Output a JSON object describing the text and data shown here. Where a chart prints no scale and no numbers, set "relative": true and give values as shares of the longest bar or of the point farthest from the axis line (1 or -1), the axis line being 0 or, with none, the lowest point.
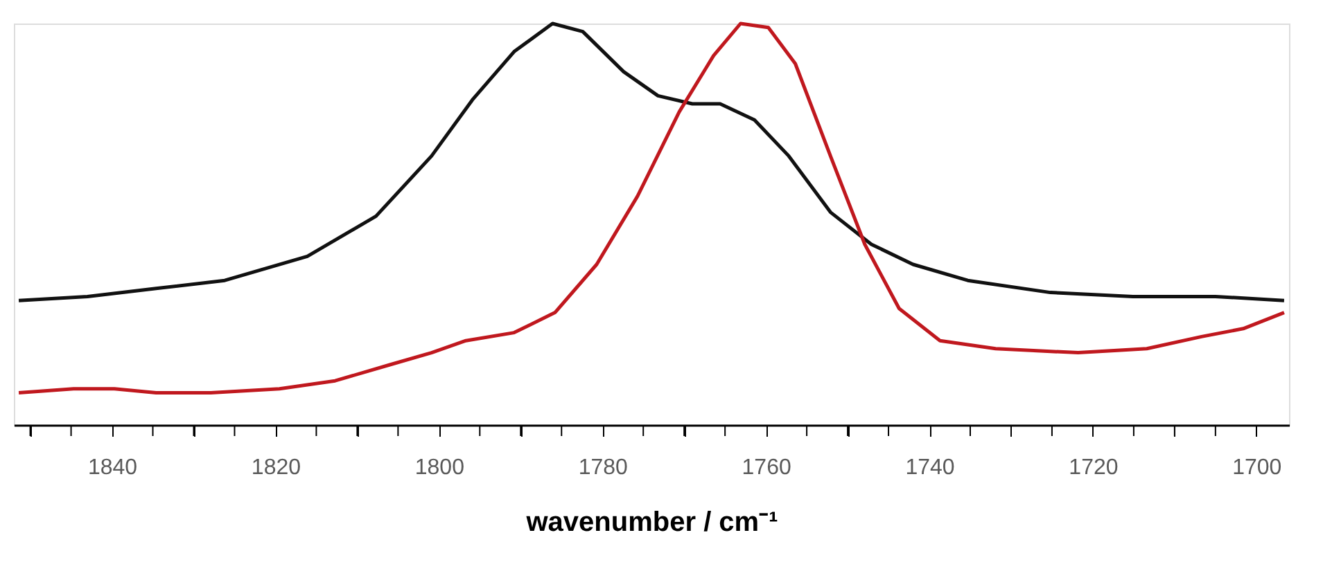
{
  "chart_data": {
    "type": "line",
    "relative": true,
    "xlabel": "wavenumber / cm⁻¹",
    "xlim": [
      1852,
      1696
    ],
    "xticks": [
      {
        "value": 1850,
        "label": null
      },
      {
        "value": 1845,
        "label": null
      },
      1840,
      {
        "value": 1835,
        "label": null
      },
      {
        "value": 1830,
        "label": null
      },
      {
        "value": 1825,
        "label": null
      },
      1820,
      {
        "value": 1815,
        "label": null
      },
      {
        "value": 1810,
        "label": null
      },
      {
        "value": 1805,
        "label": null
      },
      1800,
      {
        "value": 1795,
        "label": null
      },
      {
        "value": 1790,
        "label": null
      },
      {
        "value": 1785,
        "label": null
      },
      1780,
      {
        "value": 1775,
        "label": null
      },
      {
        "value": 1770,
        "label": null
      },
      {
        "value": 1765,
        "label": null
      },
      1760,
      {
        "value": 1755,
        "label": null
      },
      {
        "value": 1750,
        "label": null
      },
      {
        "value": 1745,
        "label": null
      },
      1740,
      {
        "value": 1735,
        "label": null
      },
      {
        "value": 1730,
        "label": null
      },
      {
        "value": 1725,
        "label": null
      },
      1720,
      {
        "value": 1715,
        "label": null
      },
      {
        "value": 1710,
        "label": null
      },
      {
        "value": 1705,
        "label": null
      },
      1700
    ],
    "grid": false,
    "marker": "none",
    "line_style": "solid",
    "series": [
      {
        "color": "#111111",
        "x": [
          1851.4,
          1843.0,
          1834.6,
          1826.2,
          1816.1,
          1807.7,
          1800.9,
          1795.9,
          1790.8,
          1786.1,
          1782.4,
          1777.4,
          1773.2,
          1769.0,
          1765.6,
          1761.4,
          1757.2,
          1752.1,
          1747.1,
          1742.0,
          1735.3,
          1725.2,
          1715.1,
          1705.0,
          1696.6
        ],
        "values": [
          0.31,
          0.32,
          0.34,
          0.36,
          0.42,
          0.52,
          0.67,
          0.81,
          0.93,
          1.0,
          0.98,
          0.88,
          0.82,
          0.8,
          0.8,
          0.76,
          0.67,
          0.53,
          0.45,
          0.4,
          0.36,
          0.33,
          0.32,
          0.32,
          0.31
        ]
      },
      {
        "color": "#c0181e",
        "x": [
          1851.4,
          1844.7,
          1839.7,
          1834.6,
          1827.9,
          1819.5,
          1812.7,
          1806.0,
          1800.9,
          1796.7,
          1790.8,
          1785.8,
          1780.7,
          1775.7,
          1770.6,
          1766.4,
          1763.1,
          1759.7,
          1756.4,
          1752.1,
          1747.9,
          1743.7,
          1738.7,
          1731.9,
          1721.8,
          1713.4,
          1706.7,
          1701.6,
          1696.6
        ],
        "values": [
          0.08,
          0.09,
          0.09,
          0.08,
          0.08,
          0.09,
          0.11,
          0.15,
          0.18,
          0.21,
          0.23,
          0.28,
          0.4,
          0.57,
          0.78,
          0.92,
          1.0,
          0.99,
          0.9,
          0.67,
          0.45,
          0.29,
          0.21,
          0.19,
          0.18,
          0.19,
          0.22,
          0.24,
          0.28
        ]
      }
    ]
  }
}
